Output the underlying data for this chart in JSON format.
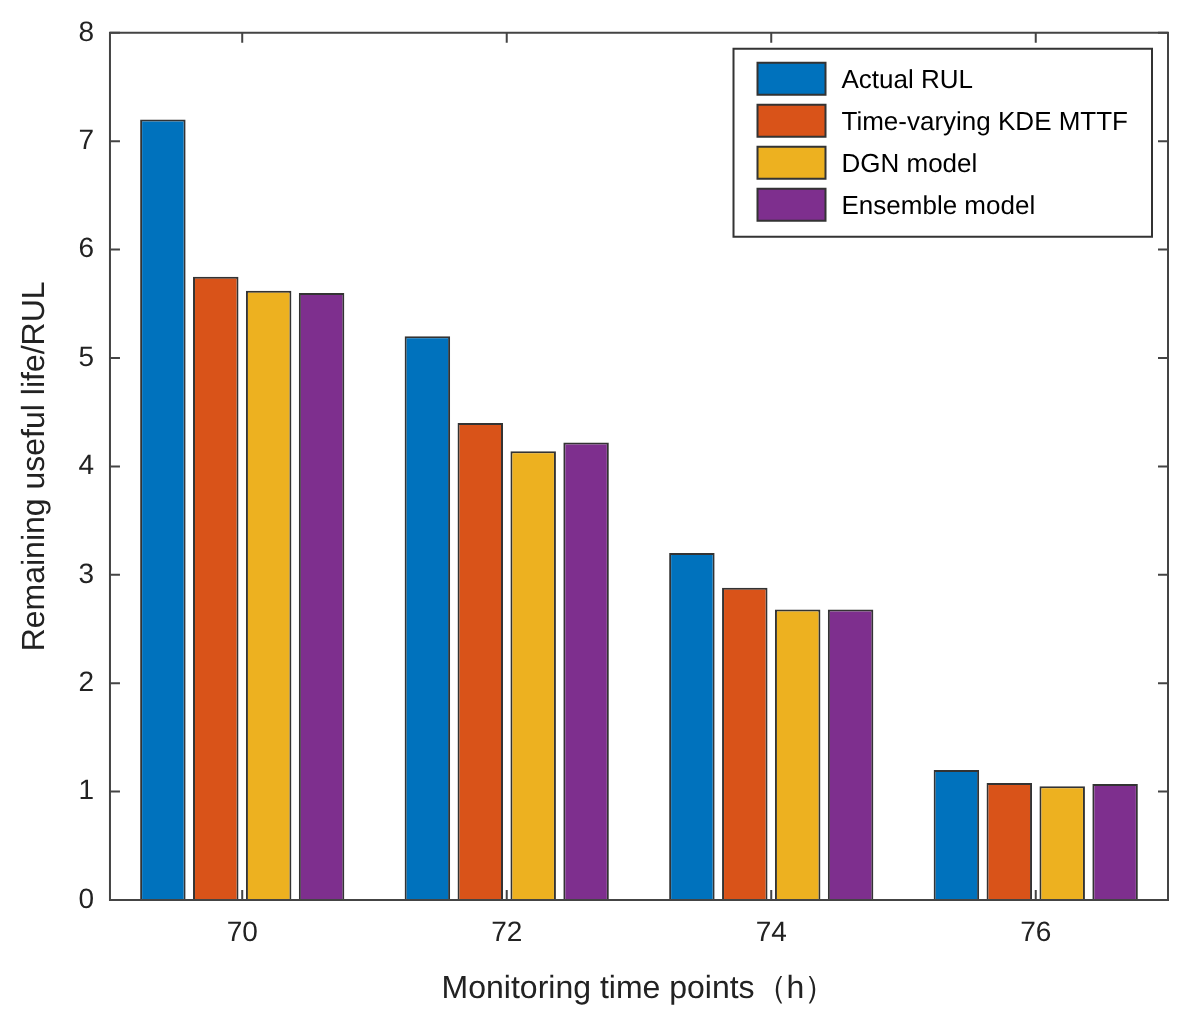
{
  "chart_data": {
    "type": "bar",
    "xlabel": "Monitoring time points（h）",
    "ylabel": "Remaining useful life/RUL",
    "categories": [
      "70",
      "72",
      "74",
      "76"
    ],
    "series": [
      {
        "name": "Actual RUL",
        "color": "#0072bd",
        "values": [
          7.2,
          5.2,
          3.2,
          1.2
        ]
      },
      {
        "name": "Time-varying KDE MTTF",
        "color": "#d95319",
        "values": [
          5.75,
          4.4,
          2.88,
          1.08
        ]
      },
      {
        "name": "DGN model",
        "color": "#edb120",
        "values": [
          5.62,
          4.14,
          2.68,
          1.05
        ]
      },
      {
        "name": "Ensemble model",
        "color": "#7e2f8e",
        "values": [
          5.6,
          4.22,
          2.68,
          1.07
        ]
      }
    ],
    "ylim": [
      0,
      8
    ],
    "yticks": [
      0,
      1,
      2,
      3,
      4,
      5,
      6,
      7,
      8
    ],
    "grid": false,
    "legend": "top right"
  }
}
